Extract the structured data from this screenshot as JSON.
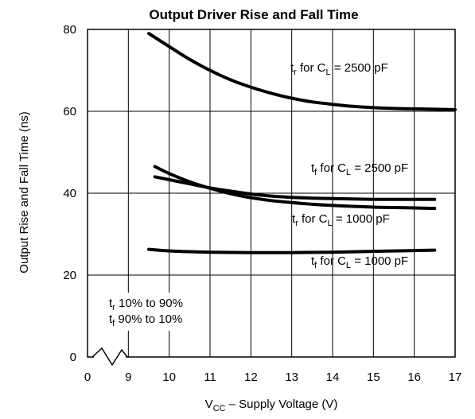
{
  "chart_data": {
    "type": "line",
    "title": "Output Driver Rise and Fall Time",
    "xlabel": {
      "main": "V",
      "sub": "CC",
      "rest": " – Supply Voltage (V)"
    },
    "ylabel": "Output Rise and Fall Time (ns)",
    "xlim": [
      8,
      17
    ],
    "ylim": [
      0,
      80
    ],
    "x_ticks": [
      "0",
      "9",
      "10",
      "11",
      "12",
      "13",
      "14",
      "15",
      "16",
      "17"
    ],
    "y_ticks": [
      "0",
      "20",
      "40",
      "60",
      "80"
    ],
    "x_axis_break": true,
    "grid": true,
    "series": [
      {
        "x": [
          9.5,
          10,
          10.5,
          11,
          11.5,
          12,
          12.5,
          13,
          13.5,
          14,
          14.5,
          15,
          15.5,
          16,
          16.5,
          17
        ],
        "y": [
          79,
          75.8,
          72.7,
          70,
          67.7,
          65.9,
          64.4,
          63.2,
          62.3,
          61.7,
          61.2,
          60.9,
          60.7,
          60.6,
          60.5,
          60.4
        ]
      },
      {
        "x": [
          9.65,
          10,
          10.5,
          11,
          11.5,
          12,
          12.5,
          13,
          13.5,
          14,
          14.5,
          15,
          15.5,
          16,
          16.5
        ],
        "y": [
          46.5,
          44.8,
          42.8,
          41.2,
          39.9,
          38.9,
          38.2,
          37.7,
          37.3,
          37.0,
          36.8,
          36.6,
          36.5,
          36.4,
          36.3
        ]
      },
      {
        "x": [
          9.65,
          10,
          10.5,
          11,
          11.5,
          12,
          12.5,
          13,
          13.5,
          14,
          14.5,
          15,
          15.5,
          16,
          16.5
        ],
        "y": [
          44.0,
          43.3,
          42.3,
          41.3,
          40.5,
          39.8,
          39.3,
          39.0,
          38.8,
          38.7,
          38.6,
          38.5,
          38.5,
          38.5,
          38.5
        ]
      },
      {
        "x": [
          9.5,
          10,
          11,
          12,
          13,
          14,
          15,
          16,
          16.5
        ],
        "y": [
          26.3,
          25.9,
          25.6,
          25.5,
          25.5,
          25.6,
          25.8,
          26.0,
          26.1
        ]
      }
    ],
    "annotations": [
      {
        "id": "tr2500",
        "main": "t",
        "sub1": "r",
        "mid": " for C",
        "sub2": "L",
        "end": " = 2500 pF"
      },
      {
        "id": "tf2500",
        "main": "t",
        "sub1": "f",
        "mid": " for C",
        "sub2": "L",
        "end": " = 2500 pF"
      },
      {
        "id": "tr1000",
        "main": "t",
        "sub1": "r",
        "mid": " for C",
        "sub2": "L",
        "end": " = 1000 pF"
      },
      {
        "id": "tf1000",
        "main": "t",
        "sub1": "f",
        "mid": " for C",
        "sub2": "L",
        "end": " = 1000 pF"
      }
    ],
    "notes": [
      {
        "main": "t",
        "sub": "r",
        "rest": " 10% to 90%"
      },
      {
        "main": "t",
        "sub": "f",
        "rest": " 90% to 10%"
      }
    ]
  }
}
